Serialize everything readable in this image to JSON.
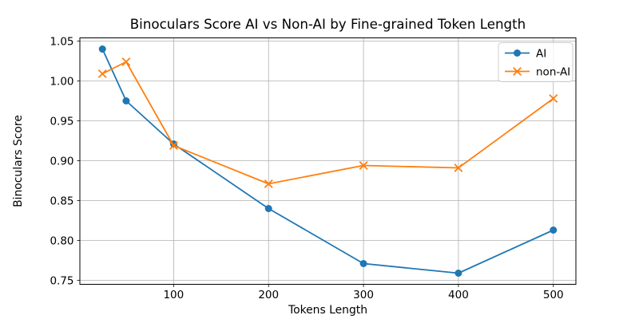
{
  "chart_data": {
    "type": "line",
    "title": "Binoculars Score AI vs Non-AI by Fine-grained Token Length",
    "xlabel": "Tokens Length",
    "ylabel": "Binoculars Score",
    "x": [
      25,
      50,
      100,
      200,
      300,
      400,
      500
    ],
    "series": [
      {
        "name": "AI",
        "color": "#1f77b4",
        "marker": "circle",
        "values": [
          1.04,
          0.975,
          0.921,
          0.84,
          0.771,
          0.759,
          0.813
        ]
      },
      {
        "name": "non-AI",
        "color": "#ff7f0e",
        "marker": "x",
        "values": [
          1.009,
          1.024,
          0.919,
          0.871,
          0.894,
          0.891,
          0.978
        ]
      }
    ],
    "xlim": [
      1.25,
      523.75
    ],
    "ylim": [
      0.745,
      1.054
    ],
    "xticks": [
      100,
      200,
      300,
      400,
      500
    ],
    "yticks": [
      0.75,
      0.8,
      0.85,
      0.9,
      0.95,
      1.0,
      1.05
    ],
    "grid": true,
    "legend_position": "upper right",
    "grid_color": "#b0b0b0",
    "spine_color": "#000000",
    "legend_border_color": "#cccccc",
    "background": "#ffffff"
  }
}
